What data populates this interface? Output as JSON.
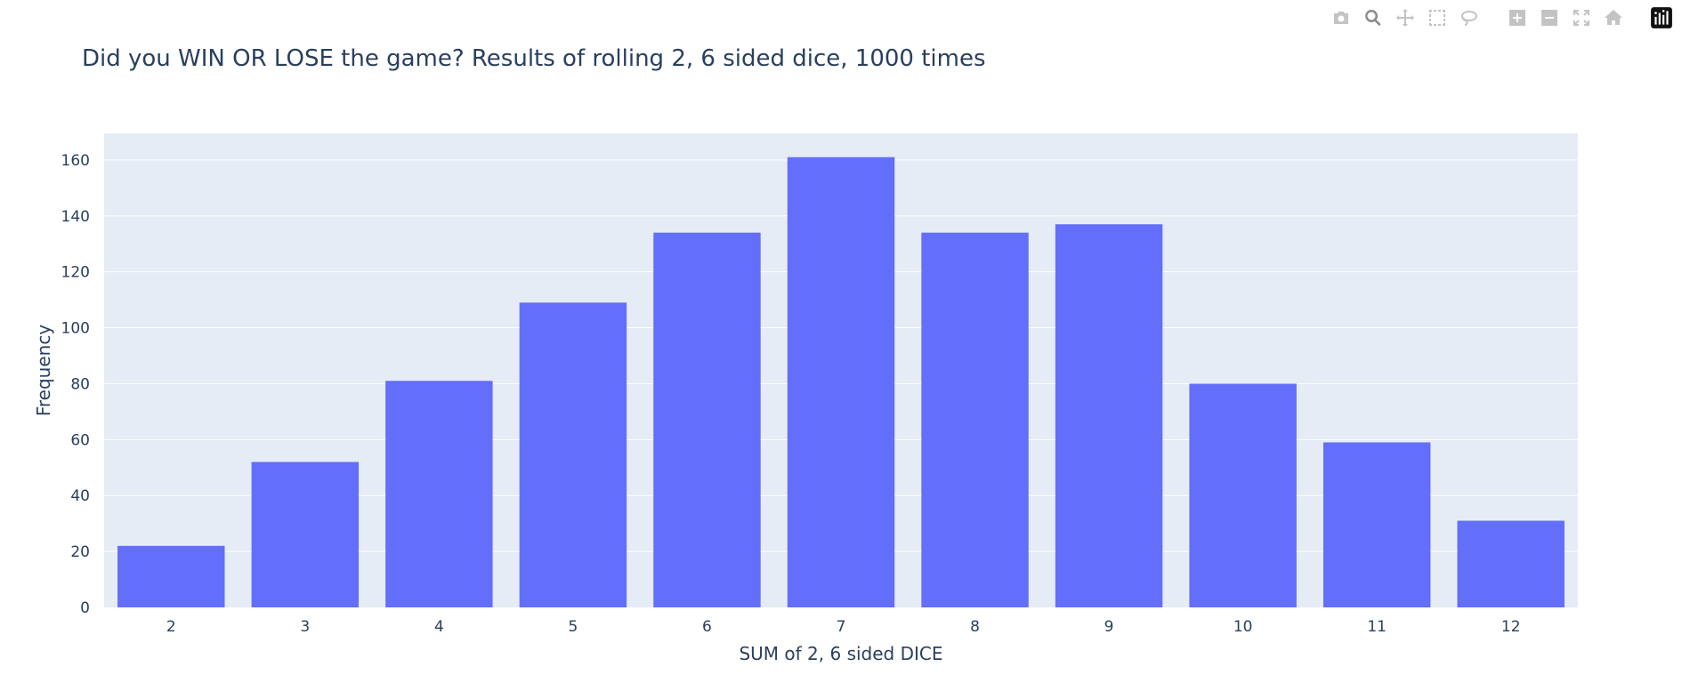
{
  "modebar": {
    "buttons": [
      {
        "name": "camera-icon",
        "group": 1
      },
      {
        "name": "zoom-icon",
        "group": 1,
        "active": true
      },
      {
        "name": "pan-icon",
        "group": 1
      },
      {
        "name": "box-select-icon",
        "group": 1
      },
      {
        "name": "lasso-select-icon",
        "group": 1
      },
      {
        "name": "zoom-in-icon",
        "group": 2
      },
      {
        "name": "zoom-out-icon",
        "group": 2
      },
      {
        "name": "autoscale-icon",
        "group": 2
      },
      {
        "name": "reset-axes-icon",
        "group": 2
      },
      {
        "name": "plotly-logo-icon",
        "group": 3
      }
    ]
  },
  "colors": {
    "bar": "#636efa",
    "plot_bg": "#e5ecf6",
    "grid": "#ffffff",
    "text": "#2a3f5f"
  },
  "chart_data": {
    "type": "bar",
    "title": "Did you WIN OR LOSE the game? Results of rolling 2, 6 sided dice, 1000 times",
    "xlabel": "SUM of 2, 6 sided DICE",
    "ylabel": "Frequency",
    "categories": [
      "2",
      "3",
      "4",
      "5",
      "6",
      "7",
      "8",
      "9",
      "10",
      "11",
      "12"
    ],
    "values": [
      22,
      52,
      81,
      109,
      134,
      161,
      134,
      137,
      80,
      59,
      31
    ],
    "ylim": [
      0,
      169.5
    ],
    "yticks": [
      0,
      20,
      40,
      60,
      80,
      100,
      120,
      140,
      160
    ],
    "grid": true,
    "legend": "none"
  }
}
